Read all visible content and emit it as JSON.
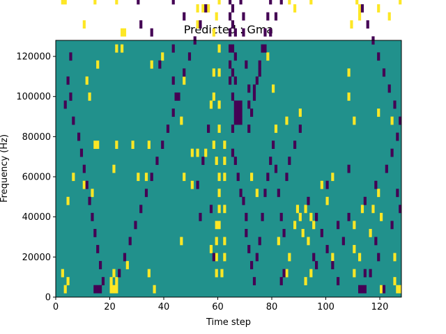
{
  "chart_data": {
    "type": "heatmap",
    "title": "Predicted : Gma",
    "xlabel": "Time step",
    "ylabel": "Frequency (Hz)",
    "xlim": [
      0,
      128
    ],
    "ylim": [
      0,
      128000
    ],
    "x_ticks": [
      0,
      20,
      40,
      60,
      80,
      100,
      120
    ],
    "y_ticks": [
      0,
      20000,
      40000,
      60000,
      80000,
      100000,
      120000
    ],
    "colors": {
      "background": "#21918c",
      "high": "#fde725",
      "low": "#440154",
      "axes": "#000000"
    },
    "grid": false,
    "legend": "none",
    "freq_bin_hz": 4000,
    "cells_high": [
      [
        3,
        123
      ],
      [
        4,
        119
      ],
      [
        14,
        117
      ],
      [
        18,
        115
      ],
      [
        36,
        123
      ],
      [
        27,
        115
      ],
      [
        24,
        111
      ],
      [
        30,
        111
      ],
      [
        35,
        107
      ],
      [
        28,
        107
      ],
      [
        41,
        99
      ],
      [
        38,
        97
      ],
      [
        58,
        115
      ],
      [
        59,
        111
      ],
      [
        92,
        119
      ],
      [
        91,
        115
      ],
      [
        89,
        111
      ],
      [
        96,
        111
      ],
      [
        111,
        115
      ],
      [
        114,
        117
      ],
      [
        117,
        111
      ],
      [
        90,
        107
      ],
      [
        97,
        107
      ],
      [
        86,
        107
      ],
      [
        106,
        107
      ],
      [
        99,
        103
      ],
      [
        102,
        97
      ],
      [
        115,
        99
      ],
      [
        123,
        97
      ],
      [
        12,
        87
      ],
      [
        13,
        83
      ],
      [
        15,
        79
      ],
      [
        9,
        79
      ],
      [
        2,
        73
      ],
      [
        3,
        73
      ],
      [
        14,
        73
      ],
      [
        22,
        73
      ],
      [
        10,
        67
      ],
      [
        24,
        65
      ],
      [
        25,
        65
      ],
      [
        24,
        61
      ],
      [
        22,
        61
      ],
      [
        52,
        71
      ],
      [
        52,
        67
      ],
      [
        54,
        71
      ],
      [
        56,
        71
      ],
      [
        60,
        73
      ],
      [
        59,
        69
      ],
      [
        58,
        65
      ],
      [
        60,
        61
      ],
      [
        61,
        75
      ],
      [
        62,
        81
      ],
      [
        62,
        85
      ],
      [
        84,
        89
      ],
      [
        86,
        73
      ],
      [
        88,
        71
      ],
      [
        94,
        73
      ],
      [
        110,
        75
      ],
      [
        110,
        79
      ],
      [
        111,
        73
      ],
      [
        112,
        71
      ],
      [
        112,
        69
      ],
      [
        113,
        83
      ],
      [
        116,
        79
      ],
      [
        122,
        75
      ],
      [
        127,
        73
      ],
      [
        119,
        71
      ],
      [
        123,
        69
      ],
      [
        109,
        67
      ],
      [
        11,
        53
      ],
      [
        12,
        49
      ],
      [
        15,
        57
      ],
      [
        35,
        57
      ],
      [
        39,
        59
      ],
      [
        47,
        53
      ],
      [
        46,
        43
      ],
      [
        58,
        55
      ],
      [
        58,
        49
      ],
      [
        57,
        47
      ],
      [
        60,
        55
      ],
      [
        60,
        47
      ],
      [
        60,
        41
      ],
      [
        58,
        37
      ],
      [
        59,
        33
      ],
      [
        60,
        29
      ],
      [
        60,
        25
      ],
      [
        60,
        21
      ],
      [
        60,
        17
      ],
      [
        62,
        37
      ],
      [
        62,
        33
      ],
      [
        62,
        29
      ],
      [
        62,
        21
      ],
      [
        62,
        13
      ],
      [
        62,
        9
      ],
      [
        61,
        5
      ],
      [
        59,
        5
      ],
      [
        78,
        59
      ],
      [
        80,
        51
      ],
      [
        85,
        43
      ],
      [
        81,
        41
      ],
      [
        90,
        45
      ],
      [
        108,
        55
      ],
      [
        108,
        49
      ],
      [
        119,
        45
      ],
      [
        110,
        43
      ],
      [
        124,
        43
      ],
      [
        14,
        37
      ],
      [
        15,
        37
      ],
      [
        22,
        37
      ],
      [
        28,
        37
      ],
      [
        34,
        37
      ],
      [
        33,
        29
      ],
      [
        30,
        29
      ],
      [
        21,
        31
      ],
      [
        13,
        25
      ],
      [
        10,
        27
      ],
      [
        4,
        23
      ],
      [
        6,
        29
      ],
      [
        47,
        29
      ],
      [
        50,
        35
      ],
      [
        52,
        35
      ],
      [
        55,
        35
      ],
      [
        50,
        27
      ],
      [
        59,
        13
      ],
      [
        59,
        9
      ],
      [
        59,
        17
      ],
      [
        72,
        29
      ],
      [
        74,
        25
      ],
      [
        82,
        13
      ],
      [
        85,
        5
      ],
      [
        86,
        9
      ],
      [
        88,
        17
      ],
      [
        89,
        21
      ],
      [
        90,
        19
      ],
      [
        94,
        19
      ],
      [
        95,
        17
      ],
      [
        91,
        15
      ],
      [
        93,
        13
      ],
      [
        92,
        21
      ],
      [
        98,
        27
      ],
      [
        100,
        23
      ],
      [
        102,
        29
      ],
      [
        110,
        17
      ],
      [
        113,
        21
      ],
      [
        119,
        25
      ],
      [
        117,
        21
      ],
      [
        120,
        19
      ],
      [
        116,
        15
      ],
      [
        110,
        11
      ],
      [
        94,
        5
      ],
      [
        92,
        3
      ],
      [
        2,
        5
      ],
      [
        20,
        1
      ],
      [
        21,
        1
      ],
      [
        20,
        3
      ],
      [
        21,
        5
      ],
      [
        22,
        3
      ],
      [
        22,
        1
      ],
      [
        26,
        7
      ],
      [
        34,
        5
      ],
      [
        46,
        13
      ],
      [
        57,
        11
      ],
      [
        120,
        1
      ],
      [
        126,
        1
      ],
      [
        127,
        1
      ],
      [
        125,
        3
      ],
      [
        110,
        5
      ],
      [
        102,
        9
      ],
      [
        112,
        9
      ],
      [
        125,
        9
      ],
      [
        36,
        1
      ],
      [
        3,
        1
      ],
      [
        4,
        3
      ]
    ],
    "cells_low": [
      [
        6,
        119
      ],
      [
        11,
        115
      ],
      [
        17,
        111
      ],
      [
        29,
        113
      ],
      [
        41,
        113
      ],
      [
        45,
        103
      ],
      [
        48,
        99
      ],
      [
        56,
        95
      ],
      [
        57,
        93
      ],
      [
        25,
        123
      ],
      [
        23,
        119
      ],
      [
        34,
        119
      ],
      [
        36,
        119
      ],
      [
        63,
        115
      ],
      [
        64,
        111
      ],
      [
        61,
        107
      ],
      [
        65,
        103
      ],
      [
        44,
        79
      ],
      [
        38,
        93
      ],
      [
        30,
        101
      ],
      [
        21,
        107
      ],
      [
        14,
        109
      ],
      [
        8,
        91
      ],
      [
        7,
        87
      ],
      [
        10,
        77
      ],
      [
        17,
        75
      ],
      [
        30,
        73
      ],
      [
        37,
        75
      ],
      [
        43,
        73
      ],
      [
        47,
        69
      ],
      [
        43,
        61
      ],
      [
        38,
        57
      ],
      [
        35,
        65
      ],
      [
        31,
        67
      ],
      [
        28,
        75
      ],
      [
        44,
        49
      ],
      [
        43,
        53
      ],
      [
        56,
        41
      ],
      [
        54,
        33
      ],
      [
        52,
        27
      ],
      [
        53,
        19
      ],
      [
        57,
        21
      ],
      [
        58,
        9
      ],
      [
        65,
        41
      ],
      [
        65,
        35
      ],
      [
        66,
        33
      ],
      [
        67,
        29
      ],
      [
        68,
        25
      ],
      [
        69,
        23
      ],
      [
        70,
        19
      ],
      [
        70,
        15
      ],
      [
        71,
        11
      ],
      [
        72,
        7
      ],
      [
        73,
        3
      ],
      [
        74,
        9
      ],
      [
        75,
        13
      ],
      [
        76,
        19
      ],
      [
        77,
        25
      ],
      [
        78,
        29
      ],
      [
        79,
        33
      ],
      [
        80,
        37
      ],
      [
        81,
        31
      ],
      [
        82,
        25
      ],
      [
        83,
        19
      ],
      [
        84,
        15
      ],
      [
        85,
        29
      ],
      [
        86,
        33
      ],
      [
        88,
        37
      ],
      [
        90,
        41
      ],
      [
        64,
        73
      ],
      [
        64,
        69
      ],
      [
        64,
        65
      ],
      [
        64,
        61
      ],
      [
        64,
        57
      ],
      [
        64,
        53
      ],
      [
        65,
        71
      ],
      [
        65,
        67
      ],
      [
        65,
        61
      ],
      [
        65,
        55
      ],
      [
        65,
        49
      ],
      [
        66,
        65
      ],
      [
        66,
        59
      ],
      [
        66,
        53
      ],
      [
        66,
        47
      ],
      [
        66,
        45
      ],
      [
        66,
        43
      ],
      [
        67,
        47
      ],
      [
        67,
        45
      ],
      [
        67,
        43
      ],
      [
        68,
        47
      ],
      [
        68,
        45
      ],
      [
        68,
        43
      ],
      [
        68,
        73
      ],
      [
        69,
        69
      ],
      [
        69,
        65
      ],
      [
        70,
        57
      ],
      [
        71,
        51
      ],
      [
        71,
        41
      ],
      [
        72,
        45
      ],
      [
        73,
        49
      ],
      [
        74,
        53
      ],
      [
        75,
        57
      ],
      [
        76,
        61
      ],
      [
        77,
        65
      ],
      [
        78,
        69
      ],
      [
        79,
        73
      ],
      [
        80,
        77
      ],
      [
        81,
        81
      ],
      [
        82,
        85
      ],
      [
        68,
        87
      ],
      [
        74,
        89
      ],
      [
        80,
        93
      ],
      [
        84,
        97
      ],
      [
        90,
        101
      ],
      [
        95,
        107
      ],
      [
        99,
        113
      ],
      [
        105,
        117
      ],
      [
        113,
        123
      ],
      [
        115,
        119
      ],
      [
        117,
        113
      ],
      [
        121,
        103
      ],
      [
        115,
        93
      ],
      [
        113,
        89
      ],
      [
        5,
        59
      ],
      [
        4,
        53
      ],
      [
        5,
        49
      ],
      [
        3,
        47
      ],
      [
        6,
        43
      ],
      [
        8,
        39
      ],
      [
        9,
        35
      ],
      [
        10,
        31
      ],
      [
        11,
        27
      ],
      [
        12,
        23
      ],
      [
        13,
        19
      ],
      [
        14,
        15
      ],
      [
        15,
        11
      ],
      [
        16,
        7
      ],
      [
        17,
        3
      ],
      [
        14,
        1
      ],
      [
        15,
        1
      ],
      [
        16,
        1
      ],
      [
        23,
        5
      ],
      [
        25,
        9
      ],
      [
        27,
        13
      ],
      [
        29,
        17
      ],
      [
        31,
        21
      ],
      [
        33,
        25
      ],
      [
        35,
        29
      ],
      [
        37,
        33
      ],
      [
        39,
        37
      ],
      [
        41,
        41
      ],
      [
        43,
        45
      ],
      [
        45,
        49
      ],
      [
        47,
        55
      ],
      [
        49,
        59
      ],
      [
        51,
        63
      ],
      [
        53,
        67
      ],
      [
        55,
        71
      ],
      [
        93,
        23
      ],
      [
        96,
        19
      ],
      [
        98,
        15
      ],
      [
        100,
        11
      ],
      [
        102,
        7
      ],
      [
        104,
        3
      ],
      [
        106,
        13
      ],
      [
        108,
        19
      ],
      [
        114,
        23
      ],
      [
        118,
        27
      ],
      [
        122,
        31
      ],
      [
        124,
        35
      ],
      [
        126,
        39
      ],
      [
        127,
        43
      ],
      [
        125,
        47
      ],
      [
        123,
        51
      ],
      [
        121,
        55
      ],
      [
        119,
        59
      ],
      [
        117,
        63
      ],
      [
        115,
        67
      ],
      [
        113,
        71
      ],
      [
        111,
        75
      ],
      [
        109,
        79
      ],
      [
        107,
        83
      ],
      [
        105,
        87
      ],
      [
        103,
        91
      ],
      [
        101,
        95
      ],
      [
        99,
        99
      ],
      [
        97,
        103
      ],
      [
        95,
        97
      ],
      [
        93,
        93
      ],
      [
        91,
        89
      ],
      [
        89,
        85
      ],
      [
        87,
        81
      ],
      [
        85,
        77
      ],
      [
        83,
        73
      ],
      [
        81,
        69
      ],
      [
        79,
        65
      ],
      [
        77,
        61
      ],
      [
        75,
        55
      ],
      [
        73,
        51
      ],
      [
        71,
        47
      ],
      [
        112,
        1
      ],
      [
        113,
        1
      ],
      [
        114,
        1
      ],
      [
        121,
        1
      ],
      [
        114,
        5
      ],
      [
        96,
        7
      ],
      [
        95,
        9
      ],
      [
        84,
        5
      ],
      [
        83,
        3
      ],
      [
        100,
        27
      ],
      [
        104,
        17
      ],
      [
        108,
        31
      ],
      [
        118,
        13
      ],
      [
        124,
        17
      ],
      [
        127,
        21
      ],
      [
        126,
        25
      ],
      [
        119,
        9
      ],
      [
        116,
        5
      ]
    ]
  }
}
